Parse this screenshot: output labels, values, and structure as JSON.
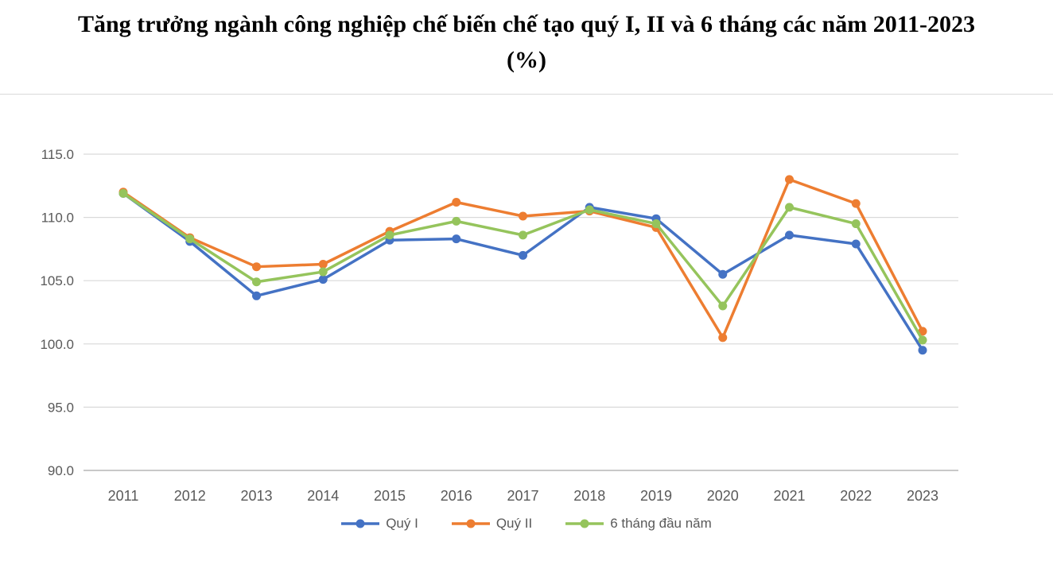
{
  "chart_data": {
    "type": "line",
    "title": "Tăng trưởng ngành công nghiệp chế biến chế tạo quý I, II và 6 tháng các năm 2011-2023 (%)",
    "xlabel": "",
    "ylabel": "",
    "categories": [
      2011,
      2012,
      2013,
      2014,
      2015,
      2016,
      2017,
      2018,
      2019,
      2020,
      2021,
      2022,
      2023
    ],
    "series": [
      {
        "name": "Quý I",
        "color": "#4472C4",
        "values": [
          111.9,
          108.1,
          103.8,
          105.1,
          108.2,
          108.3,
          107.0,
          110.8,
          109.9,
          105.5,
          108.6,
          107.9,
          99.5
        ]
      },
      {
        "name": "Quý II",
        "color": "#ED7D31",
        "values": [
          112.0,
          108.4,
          106.1,
          106.3,
          108.9,
          111.2,
          110.1,
          110.5,
          109.2,
          100.5,
          113.0,
          111.1,
          101.0
        ]
      },
      {
        "name": "6 tháng đầu năm",
        "color": "#95C45C",
        "values": [
          111.9,
          108.3,
          104.9,
          105.7,
          108.6,
          109.7,
          108.6,
          110.6,
          109.5,
          103.0,
          110.8,
          109.5,
          100.3
        ]
      }
    ],
    "ylim": [
      90,
      115
    ],
    "yticks": [
      90,
      95,
      100,
      105,
      110,
      115
    ],
    "grid": "horizontal",
    "legend_position": "bottom"
  }
}
